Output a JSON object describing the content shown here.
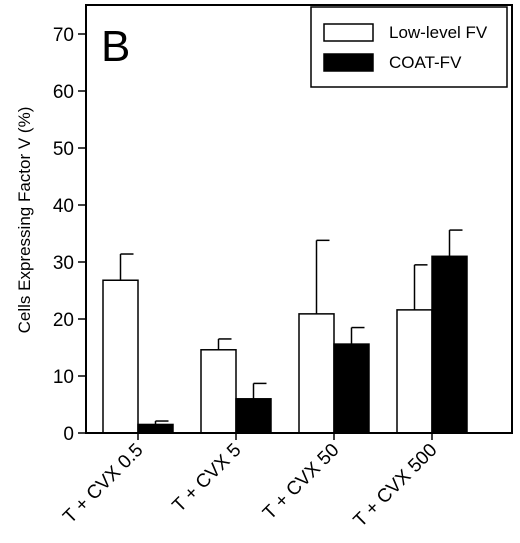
{
  "chart_data": {
    "type": "bar",
    "panel_label": "B",
    "ylabel": "Cells Expressing Factor V  (%)",
    "xlabel": "",
    "ylim": [
      0,
      75
    ],
    "yticks": [
      0,
      10,
      20,
      30,
      40,
      50,
      60,
      70
    ],
    "categories": [
      "T + CVX 0.5",
      "T + CVX 5",
      "T + CVX 50",
      "T + CVX 500"
    ],
    "series": [
      {
        "name": "Low-level FV",
        "color": "#ffffff",
        "values": [
          26.8,
          14.6,
          20.9,
          21.6
        ],
        "errors": [
          4.6,
          1.9,
          12.9,
          7.9
        ]
      },
      {
        "name": "COAT-FV",
        "color": "#000000",
        "values": [
          1.5,
          6.0,
          15.6,
          31.0
        ],
        "errors": [
          0.6,
          2.7,
          2.9,
          4.6
        ]
      }
    ],
    "legend_position": "top-right",
    "grid": false
  }
}
